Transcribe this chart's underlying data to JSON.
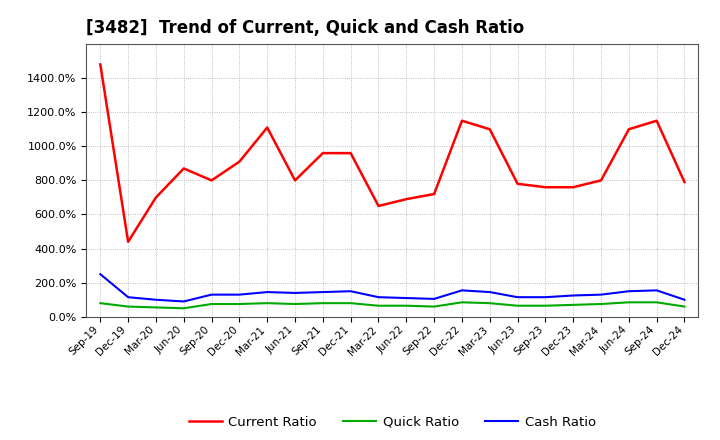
{
  "title": "[3482]  Trend of Current, Quick and Cash Ratio",
  "x_labels": [
    "Sep-19",
    "Dec-19",
    "Mar-20",
    "Jun-20",
    "Sep-20",
    "Dec-20",
    "Mar-21",
    "Jun-21",
    "Sep-21",
    "Dec-21",
    "Mar-22",
    "Jun-22",
    "Sep-22",
    "Dec-22",
    "Mar-23",
    "Jun-23",
    "Sep-23",
    "Dec-23",
    "Mar-24",
    "Jun-24",
    "Sep-24",
    "Dec-24"
  ],
  "current_ratio": [
    1480,
    440,
    700,
    870,
    800,
    910,
    1110,
    800,
    960,
    960,
    650,
    690,
    720,
    1150,
    1100,
    780,
    760,
    760,
    800,
    1100,
    1150,
    790
  ],
  "quick_ratio": [
    80,
    60,
    55,
    50,
    75,
    75,
    80,
    75,
    80,
    80,
    65,
    65,
    60,
    85,
    80,
    65,
    65,
    70,
    75,
    85,
    85,
    60
  ],
  "cash_ratio": [
    250,
    115,
    100,
    90,
    130,
    130,
    145,
    140,
    145,
    150,
    115,
    110,
    105,
    155,
    145,
    115,
    115,
    125,
    130,
    150,
    155,
    100
  ],
  "current_color": "#ff0000",
  "quick_color": "#00aa00",
  "cash_color": "#0000ff",
  "background_color": "#ffffff",
  "grid_color": "#999999",
  "ylim": [
    0,
    1600
  ],
  "yticks": [
    0,
    200,
    400,
    600,
    800,
    1000,
    1200,
    1400
  ],
  "title_fontsize": 12,
  "legend_labels": [
    "Current Ratio",
    "Quick Ratio",
    "Cash Ratio"
  ]
}
